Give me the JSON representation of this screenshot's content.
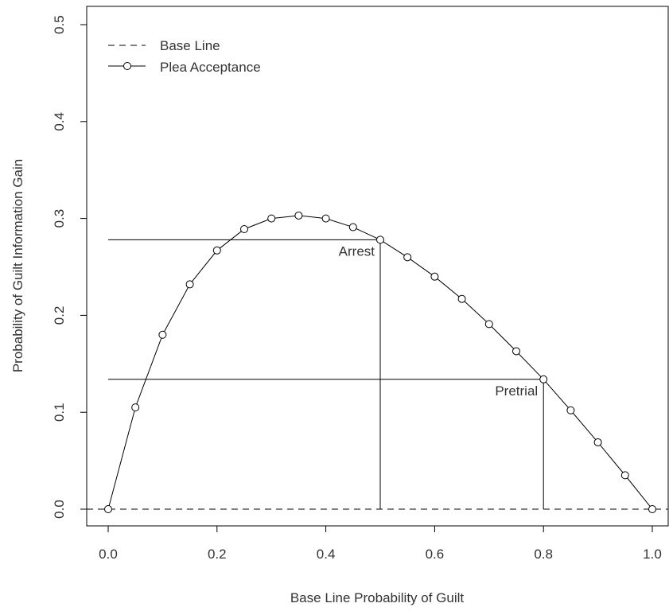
{
  "chart_data": {
    "type": "line",
    "title": "",
    "xlabel": "Base Line Probability of Guilt",
    "ylabel": "Probability of Guilt Information Gain",
    "xlim": [
      0,
      1
    ],
    "ylim": [
      0,
      0.5
    ],
    "x_ticks": [
      "0.0",
      "0.2",
      "0.4",
      "0.6",
      "0.8",
      "1.0"
    ],
    "y_ticks": [
      "0.0",
      "0.1",
      "0.2",
      "0.3",
      "0.4",
      "0.5"
    ],
    "legend_position": "top-left",
    "series": [
      {
        "name": "Base Line",
        "style": "dashed",
        "x": [
          0,
          1
        ],
        "y": [
          0,
          0
        ]
      },
      {
        "name": "Plea Acceptance",
        "style": "solid-with-circles",
        "x": [
          0.0,
          0.05,
          0.1,
          0.15,
          0.2,
          0.25,
          0.3,
          0.35,
          0.4,
          0.45,
          0.5,
          0.55,
          0.6,
          0.65,
          0.7,
          0.75,
          0.8,
          0.85,
          0.9,
          0.95,
          1.0
        ],
        "y": [
          0.0,
          0.105,
          0.18,
          0.232,
          0.267,
          0.289,
          0.3,
          0.303,
          0.3,
          0.291,
          0.278,
          0.26,
          0.24,
          0.217,
          0.191,
          0.163,
          0.134,
          0.102,
          0.069,
          0.035,
          0.0
        ]
      }
    ],
    "annotations": [
      {
        "text": "Arrest",
        "x": 0.5,
        "y": 0.278
      },
      {
        "text": "Pretrial",
        "x": 0.8,
        "y": 0.134
      }
    ]
  }
}
